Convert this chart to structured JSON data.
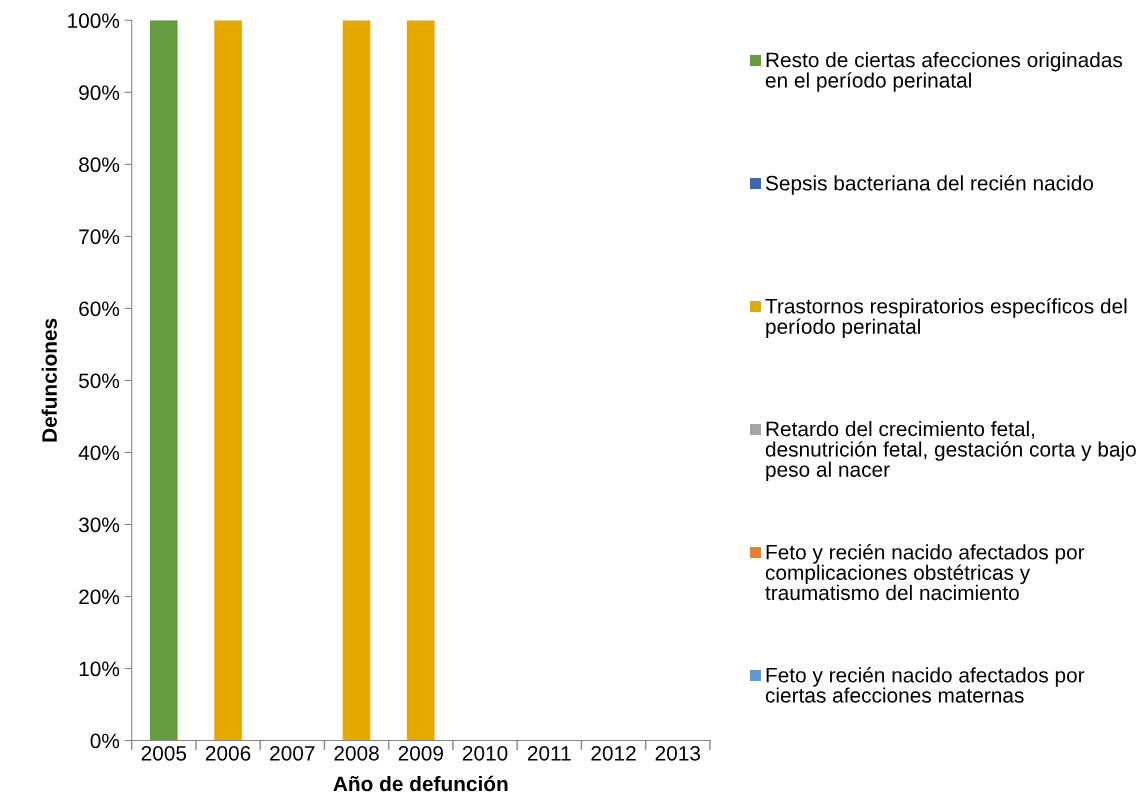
{
  "chart_data": {
    "type": "bar",
    "stacked": true,
    "xlabel": "Año de defunción",
    "ylabel": "Defunciones",
    "categories": [
      "2005",
      "2006",
      "2007",
      "2008",
      "2009",
      "2010",
      "2011",
      "2012",
      "2013"
    ],
    "ylim": [
      0,
      100
    ],
    "yticks": [
      {
        "value": 0,
        "label": "0%"
      },
      {
        "value": 10,
        "label": "10%"
      },
      {
        "value": 20,
        "label": "20%"
      },
      {
        "value": 30,
        "label": "30%"
      },
      {
        "value": 40,
        "label": "40%"
      },
      {
        "value": 50,
        "label": "50%"
      },
      {
        "value": 60,
        "label": "60%"
      },
      {
        "value": 70,
        "label": "70%"
      },
      {
        "value": 80,
        "label": "80%"
      },
      {
        "value": 90,
        "label": "90%"
      },
      {
        "value": 100,
        "label": "100%"
      }
    ],
    "grid": false,
    "legend": "right",
    "series": [
      {
        "name": "Feto y recién nacido afectados por ciertas afecciones maternas",
        "color": "#5b9bd5",
        "values": [
          0,
          0,
          0,
          0,
          0,
          0,
          0,
          0,
          0
        ]
      },
      {
        "name": "Feto y recién nacido afectados por complicaciones obstétricas y traumatismo del nacimiento",
        "color": "#ed7d31",
        "values": [
          0,
          0,
          0,
          0,
          0,
          0,
          0,
          0,
          0
        ]
      },
      {
        "name": "Retardo del crecimiento fetal, desnutrición fetal, gestación corta y bajo peso al nacer",
        "color": "#a5a5a5",
        "values": [
          0,
          0,
          0,
          0,
          0,
          0,
          0,
          0,
          0
        ]
      },
      {
        "name": "Trastornos respiratorios específicos del período perinatal",
        "color": "#e5a900",
        "values": [
          0,
          100,
          0,
          100,
          100,
          0,
          0,
          0,
          0
        ]
      },
      {
        "name": "Sepsis bacteriana del recién nacido",
        "color": "#3c68b2",
        "values": [
          0,
          0,
          0,
          0,
          0,
          0,
          0,
          0,
          0
        ]
      },
      {
        "name": "Resto de ciertas afecciones originadas en el período perinatal",
        "color": "#659c3f",
        "values": [
          100,
          0,
          0,
          0,
          0,
          0,
          0,
          0,
          0
        ]
      }
    ]
  }
}
